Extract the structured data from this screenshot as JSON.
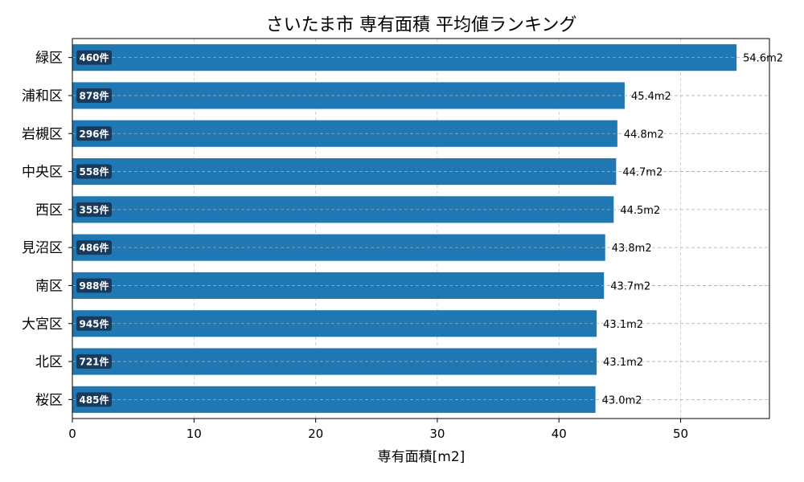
{
  "chart_data": {
    "type": "bar",
    "orientation": "horizontal",
    "title": "さいたま市 専有面積 平均値ランキング",
    "xlabel": "専有面積[m2]",
    "ylabel": "",
    "xlim": [
      0,
      57.3
    ],
    "xticks": [
      0,
      10,
      20,
      30,
      40,
      50
    ],
    "grid": true,
    "bar_color": "#1f77b4",
    "badge_color": "#1a3a5c",
    "categories": [
      "緑区",
      "浦和区",
      "岩槻区",
      "中央区",
      "西区",
      "見沼区",
      "南区",
      "大宮区",
      "北区",
      "桜区"
    ],
    "values": [
      54.6,
      45.4,
      44.8,
      44.7,
      44.5,
      43.8,
      43.7,
      43.1,
      43.1,
      43.0
    ],
    "value_labels": [
      "54.6m2",
      "45.4m2",
      "44.8m2",
      "44.7m2",
      "44.5m2",
      "43.8m2",
      "43.7m2",
      "43.1m2",
      "43.1m2",
      "43.0m2"
    ],
    "counts": [
      "460件",
      "878件",
      "296件",
      "558件",
      "355件",
      "486件",
      "988件",
      "945件",
      "721件",
      "485件"
    ]
  }
}
